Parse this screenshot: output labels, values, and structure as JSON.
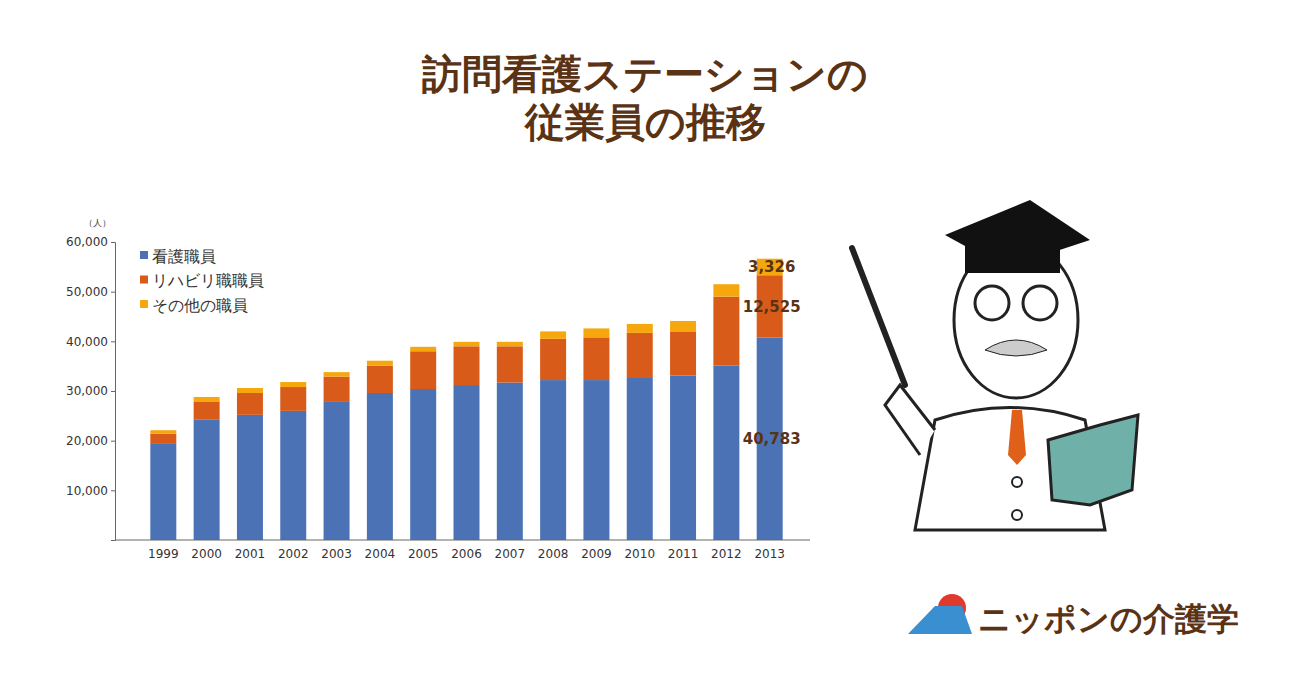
{
  "chart_data": {
    "type": "bar",
    "stacked": true,
    "title": "訪問看護ステーションの\n従業員の推移",
    "annotations": [
      "（人）",
      "ニッポンの介護学"
    ],
    "categories": [
      "1999",
      "2000",
      "2001",
      "2002",
      "2003",
      "2004",
      "2005",
      "2006",
      "2007",
      "2008",
      "2009",
      "2010",
      "2011",
      "2012",
      "2013"
    ],
    "series": [
      {
        "name": "看護職員",
        "color": "#4a72b5",
        "values": [
          19500,
          24300,
          25200,
          26000,
          27800,
          29600,
          30400,
          31200,
          31700,
          32200,
          32200,
          32800,
          33100,
          35100,
          40783
        ],
        "value_labels": [
          null,
          null,
          null,
          null,
          null,
          null,
          null,
          null,
          null,
          null,
          null,
          null,
          null,
          null,
          "40,783"
        ]
      },
      {
        "name": "リハビリ職職員",
        "color": "#d95b1a",
        "values": [
          1900,
          3600,
          4400,
          4800,
          5100,
          5500,
          7600,
          7800,
          7300,
          8300,
          8600,
          8900,
          8900,
          13900,
          12525
        ],
        "value_labels": [
          null,
          null,
          null,
          null,
          null,
          null,
          null,
          null,
          null,
          null,
          null,
          null,
          null,
          null,
          "12,525"
        ]
      },
      {
        "name": "その他の職員",
        "color": "#f5a70d",
        "values": [
          700,
          900,
          1000,
          1000,
          900,
          1000,
          900,
          900,
          900,
          1500,
          1800,
          1800,
          2100,
          2500,
          3326
        ],
        "value_labels": [
          null,
          null,
          null,
          null,
          null,
          null,
          null,
          null,
          null,
          null,
          null,
          null,
          null,
          null,
          "3,326"
        ]
      }
    ],
    "ylim": [
      0,
      60000
    ],
    "yticks": [
      {
        "value": 10000,
        "label": "10,000"
      },
      {
        "value": 20000,
        "label": "20,000"
      },
      {
        "value": 30000,
        "label": "30,000"
      },
      {
        "value": 40000,
        "label": "40,000"
      },
      {
        "value": 50000,
        "label": "50,000"
      },
      {
        "value": 60000,
        "label": "60,000"
      }
    ],
    "grid": false,
    "legend": "upper left",
    "data_labels": true
  }
}
